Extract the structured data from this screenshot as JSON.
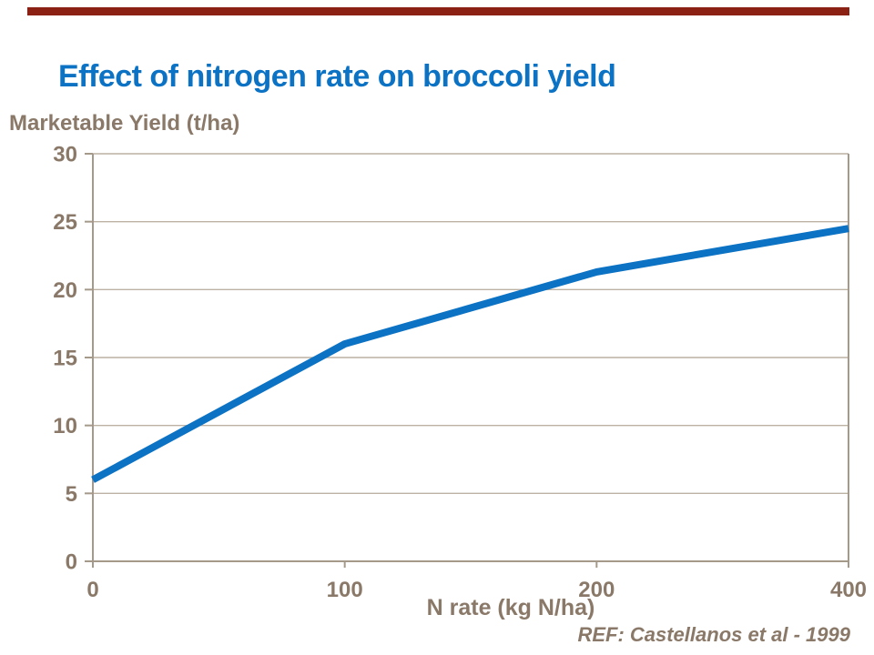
{
  "slide": {
    "title": "Effect of nitrogen rate on broccoli yield",
    "reference": "REF: Castellanos et al - 1999",
    "accent_bar_color": "#8B2015",
    "title_color": "#0B72C4"
  },
  "chart_data": {
    "type": "line",
    "categories": [
      "0",
      "100",
      "200",
      "400"
    ],
    "values": [
      6,
      16,
      21.3,
      24.5
    ],
    "title": "Effect of nitrogen rate on broccoli yield",
    "y_axis_title": "Marketable Yield (t/ha)",
    "x_axis_title": "N rate (kg N/ha)",
    "ylim": [
      0,
      30
    ],
    "yticks": [
      "0",
      "5",
      "10",
      "15",
      "20",
      "25",
      "30"
    ],
    "grid": "horizontal",
    "legend": "none",
    "line_color": "#0B72C4",
    "label_color": "#8A7968",
    "axis_color": "#A5998A",
    "gridline_color": "#BCB1A2"
  }
}
